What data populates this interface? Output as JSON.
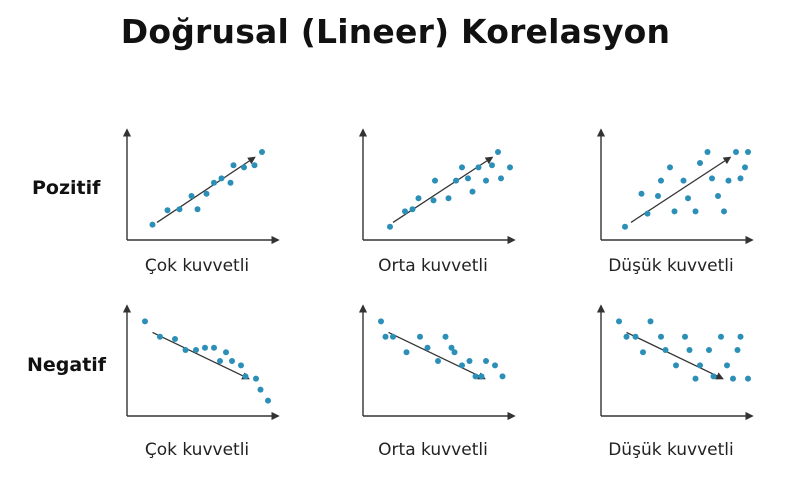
{
  "title": "Doğrusal (Lineer) Korelasyon",
  "colors": {
    "point": "#2b8fb8",
    "axis": "#333333",
    "arrow": "#333333"
  },
  "rows": [
    {
      "label": "Pozitif",
      "panels": [
        {
          "caption": "Çok kuvvetli",
          "points": [
            [
              0.17,
              0.14
            ],
            [
              0.27,
              0.27
            ],
            [
              0.35,
              0.28
            ],
            [
              0.43,
              0.4
            ],
            [
              0.47,
              0.28
            ],
            [
              0.53,
              0.42
            ],
            [
              0.58,
              0.52
            ],
            [
              0.63,
              0.56
            ],
            [
              0.69,
              0.52
            ],
            [
              0.71,
              0.68
            ],
            [
              0.78,
              0.66
            ],
            [
              0.85,
              0.68
            ],
            [
              0.9,
              0.8
            ]
          ],
          "arrow": [
            [
              0.2,
              0.16
            ],
            [
              0.85,
              0.75
            ]
          ]
        },
        {
          "caption": "Orta kuvvetli",
          "points": [
            [
              0.18,
              0.12
            ],
            [
              0.28,
              0.26
            ],
            [
              0.33,
              0.28
            ],
            [
              0.37,
              0.38
            ],
            [
              0.47,
              0.36
            ],
            [
              0.48,
              0.54
            ],
            [
              0.57,
              0.38
            ],
            [
              0.62,
              0.54
            ],
            [
              0.66,
              0.66
            ],
            [
              0.7,
              0.56
            ],
            [
              0.73,
              0.44
            ],
            [
              0.77,
              0.66
            ],
            [
              0.82,
              0.54
            ],
            [
              0.86,
              0.68
            ],
            [
              0.9,
              0.8
            ],
            [
              0.92,
              0.56
            ],
            [
              0.98,
              0.66
            ]
          ],
          "arrow": [
            [
              0.2,
              0.16
            ],
            [
              0.86,
              0.75
            ]
          ]
        },
        {
          "caption": "Düşük kuvvetli",
          "points": [
            [
              0.16,
              0.12
            ],
            [
              0.27,
              0.42
            ],
            [
              0.31,
              0.24
            ],
            [
              0.38,
              0.4
            ],
            [
              0.4,
              0.54
            ],
            [
              0.46,
              0.66
            ],
            [
              0.49,
              0.26
            ],
            [
              0.55,
              0.54
            ],
            [
              0.58,
              0.38
            ],
            [
              0.63,
              0.26
            ],
            [
              0.66,
              0.7
            ],
            [
              0.71,
              0.8
            ],
            [
              0.74,
              0.56
            ],
            [
              0.78,
              0.4
            ],
            [
              0.82,
              0.26
            ],
            [
              0.85,
              0.54
            ],
            [
              0.9,
              0.8
            ],
            [
              0.93,
              0.56
            ],
            [
              0.96,
              0.66
            ],
            [
              0.98,
              0.8
            ]
          ],
          "arrow": [
            [
              0.2,
              0.16
            ],
            [
              0.86,
              0.75
            ]
          ]
        }
      ]
    },
    {
      "label": "Negatif",
      "panels": [
        {
          "caption": "Çok kuvvetli",
          "points": [
            [
              0.12,
              0.86
            ],
            [
              0.22,
              0.72
            ],
            [
              0.32,
              0.7
            ],
            [
              0.39,
              0.6
            ],
            [
              0.46,
              0.6
            ],
            [
              0.52,
              0.62
            ],
            [
              0.58,
              0.62
            ],
            [
              0.62,
              0.5
            ],
            [
              0.66,
              0.58
            ],
            [
              0.7,
              0.5
            ],
            [
              0.76,
              0.46
            ],
            [
              0.79,
              0.36
            ],
            [
              0.86,
              0.34
            ],
            [
              0.89,
              0.24
            ],
            [
              0.94,
              0.14
            ]
          ],
          "arrow": [
            [
              0.17,
              0.76
            ],
            [
              0.81,
              0.34
            ]
          ]
        },
        {
          "caption": "Orta kuvvetli",
          "points": [
            [
              0.12,
              0.86
            ],
            [
              0.15,
              0.72
            ],
            [
              0.2,
              0.72
            ],
            [
              0.29,
              0.58
            ],
            [
              0.38,
              0.72
            ],
            [
              0.43,
              0.62
            ],
            [
              0.5,
              0.5
            ],
            [
              0.55,
              0.72
            ],
            [
              0.59,
              0.62
            ],
            [
              0.61,
              0.58
            ],
            [
              0.66,
              0.46
            ],
            [
              0.71,
              0.5
            ],
            [
              0.75,
              0.36
            ],
            [
              0.79,
              0.36
            ],
            [
              0.82,
              0.5
            ],
            [
              0.88,
              0.46
            ],
            [
              0.93,
              0.36
            ]
          ],
          "arrow": [
            [
              0.17,
              0.76
            ],
            [
              0.81,
              0.34
            ]
          ]
        },
        {
          "caption": "Düşük kuvvetli",
          "points": [
            [
              0.12,
              0.86
            ],
            [
              0.17,
              0.72
            ],
            [
              0.23,
              0.72
            ],
            [
              0.28,
              0.58
            ],
            [
              0.33,
              0.86
            ],
            [
              0.4,
              0.72
            ],
            [
              0.43,
              0.6
            ],
            [
              0.5,
              0.46
            ],
            [
              0.56,
              0.72
            ],
            [
              0.59,
              0.6
            ],
            [
              0.63,
              0.34
            ],
            [
              0.66,
              0.46
            ],
            [
              0.72,
              0.6
            ],
            [
              0.75,
              0.36
            ],
            [
              0.8,
              0.72
            ],
            [
              0.84,
              0.46
            ],
            [
              0.88,
              0.34
            ],
            [
              0.91,
              0.6
            ],
            [
              0.93,
              0.72
            ],
            [
              0.98,
              0.34
            ]
          ],
          "arrow": [
            [
              0.17,
              0.76
            ],
            [
              0.81,
              0.34
            ]
          ]
        }
      ]
    }
  ]
}
